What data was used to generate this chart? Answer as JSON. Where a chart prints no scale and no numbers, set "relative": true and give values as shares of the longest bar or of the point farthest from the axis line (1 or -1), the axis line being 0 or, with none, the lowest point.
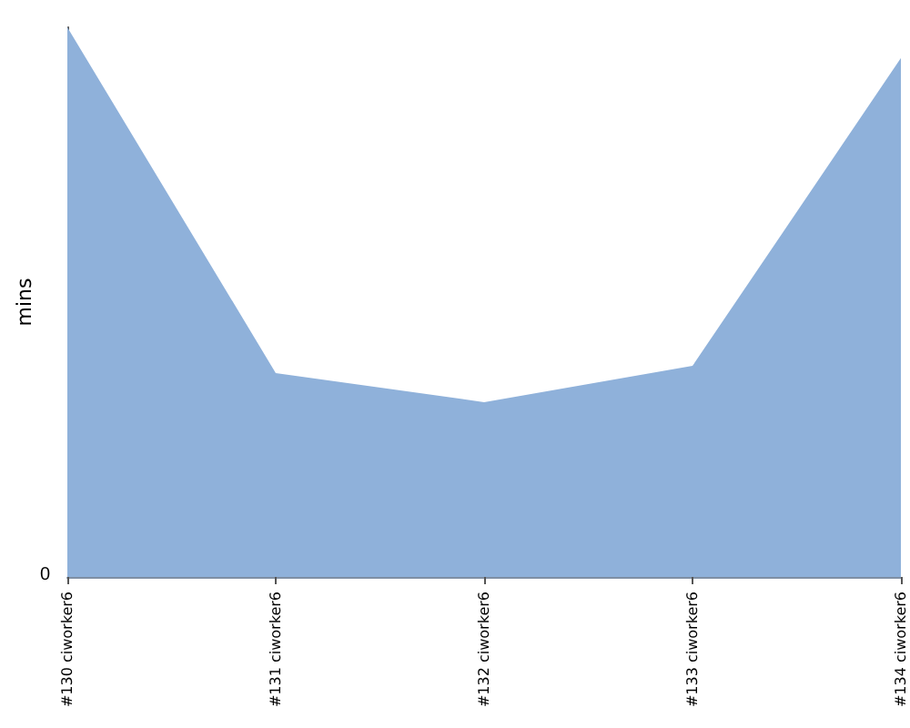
{
  "chart_data": {
    "type": "area",
    "ylabel": "mins",
    "relative": true,
    "categories": [
      "#130 ciworker6",
      "#131 ciworker6",
      "#132 ciworker6",
      "#133 ciworker6",
      "#134 ciworker6"
    ],
    "series": [
      {
        "color": "#8fb1da",
        "values": [
          1,
          0.371,
          0.318,
          0.384,
          0.944
        ]
      }
    ],
    "annotations": [
      "0"
    ]
  }
}
